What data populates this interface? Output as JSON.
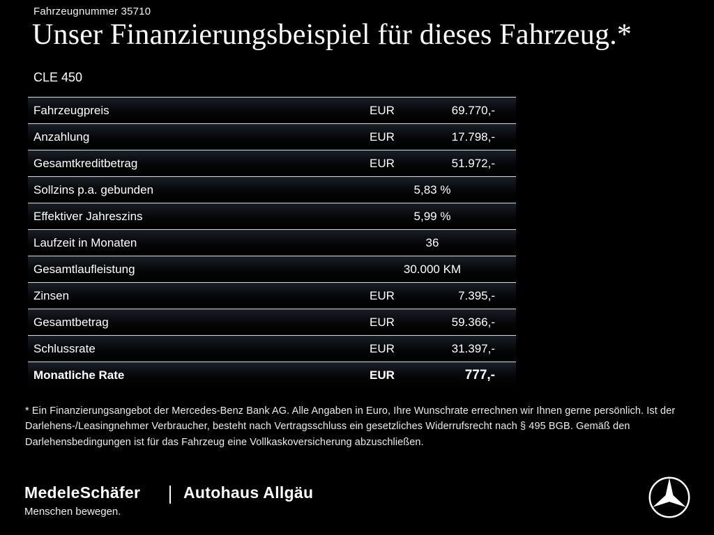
{
  "header": {
    "vehicle_number": "Fahrzeugnummer 35710",
    "title": "Unser Finanzierungsbeispiel für dieses Fahrzeug.*",
    "model": "CLE 450"
  },
  "table": {
    "rows": [
      {
        "label": "Fahrzeugpreis",
        "currency": "EUR",
        "value": "69.770,-"
      },
      {
        "label": "Anzahlung",
        "currency": "EUR",
        "value": "17.798,-"
      },
      {
        "label": "Gesamtkreditbetrag",
        "currency": "EUR",
        "value": "51.972,-"
      },
      {
        "label": "Sollzins p.a. gebunden",
        "currency": "",
        "value": "5,83 %"
      },
      {
        "label": "Effektiver Jahreszins",
        "currency": "",
        "value": "5,99 %"
      },
      {
        "label": "Laufzeit in Monaten",
        "currency": "",
        "value": "36"
      },
      {
        "label": "Gesamtlaufleistung",
        "currency": "",
        "value": "30.000 KM"
      },
      {
        "label": "Zinsen",
        "currency": "EUR",
        "value": "7.395,-"
      },
      {
        "label": "Gesamtbetrag",
        "currency": "EUR",
        "value": "59.366,-"
      },
      {
        "label": "Schlussrate",
        "currency": "EUR",
        "value": "31.397,-"
      },
      {
        "label": "Monatliche Rate",
        "currency": "EUR",
        "value": "777,-",
        "bold": true
      }
    ]
  },
  "footnote": {
    "text": "* Ein Finanzierungsangebot der Mercedes-Benz Bank AG. Alle Angaben in Euro, Ihre Wunschrate errechnen wir Ihnen gerne persönlich. Ist der Darlehens-/Leasingnehmer Verbraucher, besteht nach Vertragsschluss ein gesetzliches Widerrufsrecht nach § 495 BGB. Gemäß den Darlehensbedingungen ist für das Fahrzeug eine Vollkaskoversicherung abzuschließen."
  },
  "footer": {
    "dealer1_name": "MedeleSchäfer",
    "dealer1_tagline": "Menschen bewegen.",
    "dealer2_name": "Autohaus Allgäu",
    "brand_logo": "mercedes-star"
  },
  "colors": {
    "background": "#000000",
    "text": "#ffffff",
    "separator": "#ebf0f4"
  }
}
